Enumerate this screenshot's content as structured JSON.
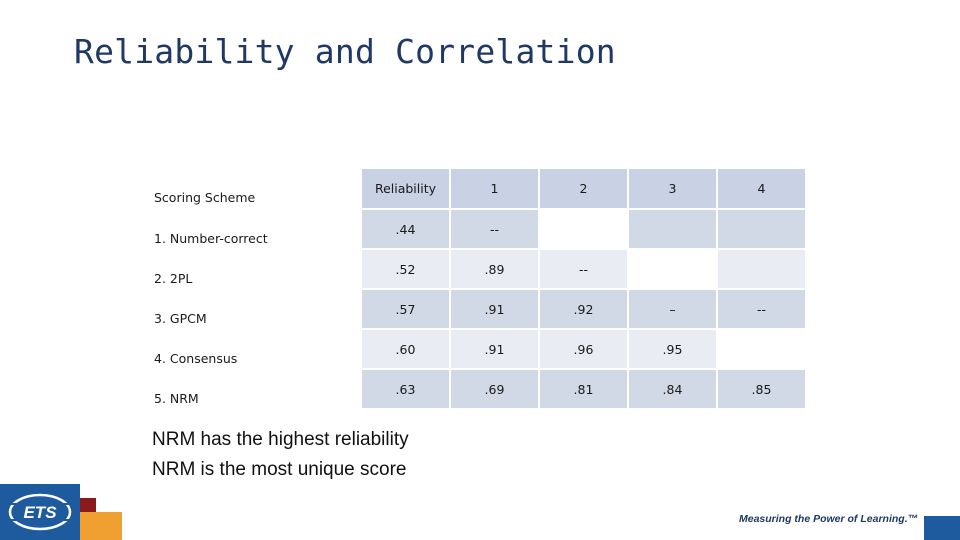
{
  "title": "Reliability and Correlation",
  "table": {
    "headers": [
      "Scoring Scheme",
      "Reliability",
      "1",
      "2",
      "3",
      "4"
    ],
    "rows": [
      {
        "label": "1. Number-correct",
        "values": [
          ".44",
          "--",
          "",
          "",
          ""
        ]
      },
      {
        "label": "2. 2PL",
        "values": [
          ".52",
          ".89",
          "--",
          "",
          ""
        ]
      },
      {
        "label": "3. GPCM",
        "values": [
          ".57",
          ".91",
          ".92",
          "–",
          "--"
        ]
      },
      {
        "label": "4. Consensus",
        "values": [
          ".60",
          ".91",
          ".96",
          ".95",
          ""
        ]
      },
      {
        "label": "5. NRM",
        "values": [
          ".63",
          ".69",
          ".81",
          ".84",
          ".85"
        ]
      }
    ]
  },
  "notes": [
    "NRM has the highest reliability",
    "NRM is the most unique score"
  ],
  "footer": {
    "logo_text": "ETS",
    "tagline": "Measuring the Power of Learning.™"
  },
  "colors": {
    "brand_blue": "#1e5a9e",
    "accent_red": "#8b1a1a",
    "accent_orange": "#f0a030",
    "title": "#1f3864"
  }
}
